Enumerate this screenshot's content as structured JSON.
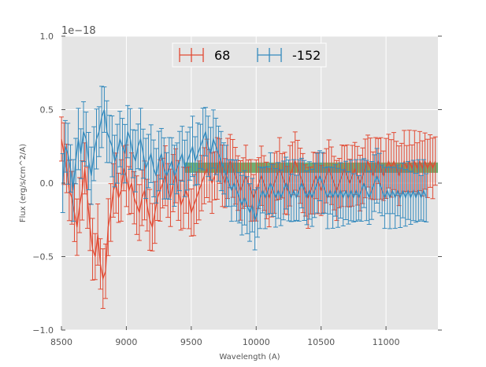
{
  "chart_data": {
    "type": "line",
    "title": "",
    "xlabel": "Wavelength (A)",
    "ylabel": "Flux (erg/s/cm^2/A)",
    "y_offset_label": "1e−18",
    "xlim": [
      8500,
      11400
    ],
    "ylim": [
      -1.0,
      1.0
    ],
    "x_ticks": [
      8500,
      9000,
      9500,
      10000,
      10500,
      11000
    ],
    "x_tick_labels": [
      "8500",
      "9000",
      "9500",
      "10000",
      "10500",
      "11000"
    ],
    "y_ticks": [
      -1.0,
      -0.5,
      0.0,
      0.5,
      1.0
    ],
    "y_tick_labels": [
      "−1.0",
      "−0.5",
      "0.0",
      "0.5",
      "1.0"
    ],
    "grid": true,
    "legend_position": "top-center",
    "band": {
      "x_start": 9450,
      "x_end": 11400,
      "y_low": 0.07,
      "y_high": 0.14,
      "color": "#4a9a4a"
    },
    "series": [
      {
        "name": "68",
        "color": "#e24a33",
        "x_start": 8500,
        "x_step": 20,
        "values": [
          0.3,
          0.2,
          0.1,
          -0.05,
          -0.1,
          -0.2,
          -0.3,
          -0.15,
          -0.05,
          0.1,
          -0.1,
          -0.3,
          -0.45,
          -0.5,
          -0.35,
          -0.55,
          -0.65,
          -0.6,
          -0.3,
          -0.2,
          -0.05,
          0.0,
          -0.1,
          -0.05,
          0.1,
          0.05,
          -0.05,
          0.0,
          -0.1,
          -0.15,
          -0.2,
          -0.1,
          -0.05,
          -0.15,
          -0.25,
          -0.3,
          -0.2,
          -0.1,
          -0.05,
          0.0,
          0.05,
          -0.05,
          -0.1,
          0.0,
          0.05,
          -0.05,
          -0.15,
          -0.1,
          -0.05,
          -0.1,
          -0.2,
          -0.15,
          -0.1,
          -0.05,
          0.0,
          0.05,
          0.1,
          0.05,
          0.0,
          0.05,
          0.1,
          0.15,
          0.05,
          0.0,
          0.1,
          0.15,
          0.1,
          0.05,
          0.0,
          -0.05,
          0.0,
          0.05,
          0.0,
          -0.05,
          -0.1,
          -0.05,
          0.0,
          0.05,
          0.0,
          -0.05,
          -0.1,
          -0.05,
          0.0,
          0.05,
          0.1,
          0.05,
          0.0,
          -0.05,
          0.05,
          0.1,
          0.15,
          0.1,
          0.05,
          0.0,
          -0.05,
          -0.1,
          -0.05,
          0.0,
          0.05,
          0.0,
          -0.05,
          0.0,
          0.05,
          0.1,
          0.05,
          0.0,
          -0.05,
          0.0,
          0.05,
          0.1,
          0.05,
          0.0,
          0.05,
          0.1,
          0.05,
          0.0,
          0.05,
          0.1,
          0.15,
          0.1,
          0.05,
          0.1,
          0.15,
          0.1,
          0.05,
          0.1,
          0.15,
          0.1,
          0.15,
          0.1,
          0.05,
          0.1,
          0.15,
          0.1,
          0.15,
          0.1,
          0.15,
          0.1,
          0.15,
          0.1,
          0.15,
          0.1,
          0.15,
          0.1,
          0.15
        ]
      },
      {
        "name": "-152",
        "color": "#348abd",
        "x_start": 8510,
        "x_step": 20,
        "values": [
          0.0,
          0.25,
          0.2,
          0.1,
          -0.05,
          0.15,
          0.3,
          0.2,
          0.35,
          0.3,
          0.15,
          0.05,
          0.2,
          0.3,
          0.35,
          0.45,
          0.5,
          0.35,
          0.3,
          0.25,
          0.15,
          0.2,
          0.3,
          0.25,
          0.2,
          0.35,
          0.3,
          0.2,
          0.15,
          0.25,
          0.3,
          0.2,
          0.1,
          0.15,
          0.2,
          0.1,
          0.05,
          0.15,
          0.2,
          0.1,
          0.05,
          0.1,
          0.15,
          0.05,
          0.1,
          0.15,
          0.2,
          0.1,
          0.15,
          0.2,
          0.25,
          0.15,
          0.2,
          0.25,
          0.3,
          0.35,
          0.25,
          0.2,
          0.3,
          0.25,
          0.2,
          0.15,
          0.1,
          0.05,
          0.0,
          -0.05,
          0.0,
          -0.05,
          -0.1,
          -0.15,
          -0.1,
          -0.15,
          -0.2,
          -0.15,
          -0.25,
          -0.2,
          -0.1,
          -0.05,
          -0.1,
          -0.05,
          0.0,
          -0.05,
          -0.1,
          -0.05,
          -0.1,
          -0.05,
          0.0,
          -0.05,
          -0.1,
          -0.05,
          -0.1,
          -0.05,
          0.0,
          -0.05,
          -0.1,
          -0.05,
          -0.1,
          -0.05,
          0.0,
          0.05,
          0.0,
          -0.05,
          -0.1,
          -0.05,
          -0.1,
          -0.05,
          -0.1,
          -0.05,
          -0.1,
          -0.05,
          -0.1,
          -0.05,
          -0.1,
          -0.05,
          -0.1,
          -0.05,
          0.0,
          -0.05,
          -0.1,
          -0.05,
          0.0,
          0.05,
          0.0,
          -0.05,
          -0.1,
          -0.05,
          -0.1,
          -0.05,
          -0.1,
          -0.05,
          -0.1,
          -0.05,
          -0.1,
          -0.05,
          -0.1,
          -0.05,
          -0.1,
          -0.05,
          -0.1,
          -0.05,
          -0.1
        ]
      }
    ]
  }
}
